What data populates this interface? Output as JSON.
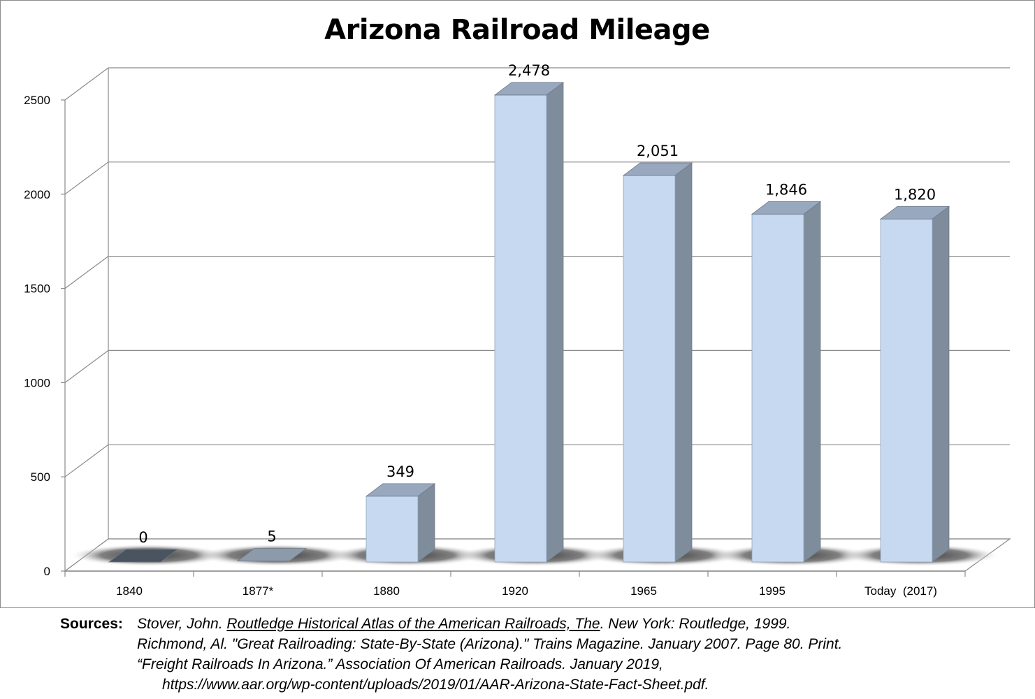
{
  "chart_data": {
    "type": "bar",
    "title": "Arizona Railroad Mileage",
    "categories": [
      "1840",
      "1877*",
      "1880",
      "1920",
      "1965",
      "1995",
      "Today  (2017)"
    ],
    "values": [
      0,
      5,
      349,
      2478,
      2051,
      1846,
      1820
    ],
    "value_labels": [
      "0",
      "5",
      "349",
      "2,478",
      "2,051",
      "1,846",
      "1,820"
    ],
    "ylim": [
      0,
      2500
    ],
    "yticks": [
      "0",
      "500",
      "1000",
      "1500",
      "2000",
      "2500"
    ],
    "xlabel": "",
    "ylabel": "",
    "grid": true,
    "style": "3d-column",
    "colors": {
      "bar_front": "#c6d9f1",
      "bar_side": "#7f8c9b",
      "bar_top": "#98a8be",
      "zero_bar": "#4a5360",
      "small_bar": "#8d9aaa",
      "grid": "#8a8a8a",
      "floor": "#5a5a5a"
    }
  },
  "sources": {
    "label": "Sources:",
    "line1_a": "Stover, John. ",
    "line1_book": "Routledge Historical Atlas of the American Railroads, The",
    "line1_b": ". New York: Routledge, 1999.",
    "line2": "Richmond, Al. \"Great Railroading: State-By-State (Arizona).\" Trains Magazine. January 2007. Page 80. Print.",
    "line3": "“Freight Railroads In Arizona.” Association Of American Railroads. January 2019,",
    "line4": "https://www.aar.org/wp-content/uploads/2019/01/AAR-Arizona-State-Fact-Sheet.pdf."
  }
}
